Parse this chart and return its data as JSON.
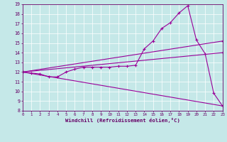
{
  "xlabel": "Windchill (Refroidissement éolien,°C)",
  "background_color": "#c5e8e8",
  "line_color": "#990099",
  "grid_color": "#ffffff",
  "text_color": "#660066",
  "xmin": 0,
  "xmax": 23,
  "ymin": 8,
  "ymax": 19,
  "x_ticks": [
    0,
    1,
    2,
    3,
    4,
    5,
    6,
    7,
    8,
    9,
    10,
    11,
    12,
    13,
    14,
    15,
    16,
    17,
    18,
    19,
    20,
    21,
    22,
    23
  ],
  "y_ticks": [
    8,
    9,
    10,
    11,
    12,
    13,
    14,
    15,
    16,
    17,
    18,
    19
  ],
  "line1_x": [
    0,
    1,
    2,
    3,
    4,
    5,
    6,
    7,
    8,
    9,
    10,
    11,
    12,
    13,
    14,
    15,
    16,
    17,
    18,
    19,
    20,
    21,
    22,
    23
  ],
  "line1_y": [
    12.0,
    11.9,
    11.8,
    11.5,
    11.5,
    12.0,
    12.3,
    12.5,
    12.5,
    12.5,
    12.5,
    12.6,
    12.6,
    12.7,
    14.4,
    15.2,
    16.5,
    17.1,
    18.1,
    18.85,
    15.3,
    13.9,
    9.8,
    8.5
  ],
  "line2_x": [
    0,
    23
  ],
  "line2_y": [
    12.0,
    15.2
  ],
  "line3_x": [
    0,
    23
  ],
  "line3_y": [
    12.0,
    14.0
  ],
  "line4_x": [
    0,
    23
  ],
  "line4_y": [
    12.0,
    8.5
  ]
}
